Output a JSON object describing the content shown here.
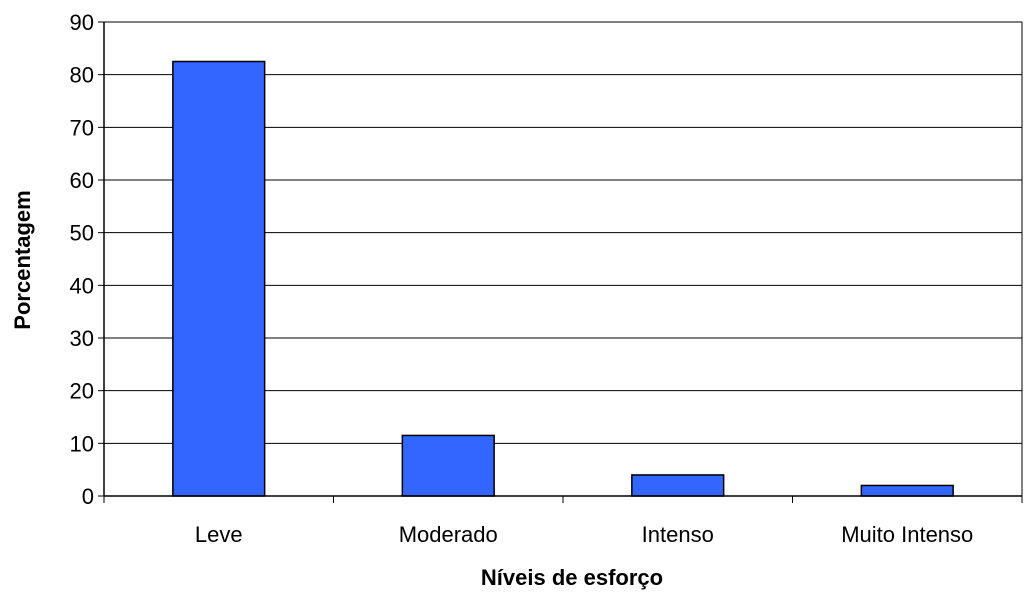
{
  "chart_data": {
    "type": "bar",
    "title": "",
    "xlabel": "Níveis de esforço",
    "ylabel": "Porcentagem",
    "categories": [
      "Leve",
      "Moderado",
      "Intenso",
      "Muito Intenso"
    ],
    "values": [
      82.5,
      11.5,
      4,
      2
    ],
    "ylim": [
      0,
      90
    ],
    "yticks": [
      "0",
      "10",
      "20",
      "30",
      "40",
      "50",
      "60",
      "70",
      "80",
      "90"
    ],
    "grid": true,
    "legend": "none",
    "bar_color": "#3366ff",
    "border_color": "#000000"
  }
}
